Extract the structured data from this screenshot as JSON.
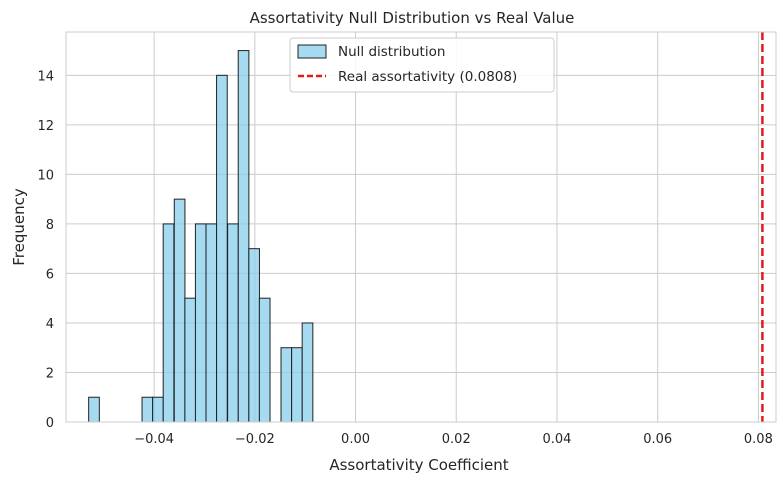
{
  "chart_data": {
    "type": "bar",
    "title": "Assortativity Null Distribution vs Real Value",
    "xlabel": "Assortativity Coefficient",
    "ylabel": "Frequency",
    "xlim": [
      -0.0575,
      0.0835
    ],
    "ylim": [
      0,
      15.75
    ],
    "xticks": [
      -0.04,
      -0.02,
      0.0,
      0.02,
      0.04,
      0.06,
      0.08
    ],
    "xtick_labels": [
      "−0.04",
      "−0.02",
      "0.00",
      "0.02",
      "0.04",
      "0.06",
      "0.08"
    ],
    "yticks": [
      0,
      2,
      4,
      6,
      8,
      10,
      12,
      14
    ],
    "yticks_labels": [
      "0",
      "2",
      "4",
      "6",
      "8",
      "10",
      "12",
      "14"
    ],
    "grid": true,
    "legend_position": "top-center",
    "bar_color": "#87ceeb",
    "bar_edge_color": "#222222",
    "line_color": "#e31a1c",
    "series": [
      {
        "name": "Null distribution",
        "kind": "histogram",
        "bin_width": 0.00212,
        "bins": [
          {
            "x0": -0.053,
            "value": 1
          },
          {
            "x0": -0.0509,
            "value": 0
          },
          {
            "x0": -0.0488,
            "value": 0
          },
          {
            "x0": -0.0466,
            "value": 0
          },
          {
            "x0": -0.0445,
            "value": 0
          },
          {
            "x0": -0.0424,
            "value": 1
          },
          {
            "x0": -0.0403,
            "value": 1
          },
          {
            "x0": -0.0382,
            "value": 8
          },
          {
            "x0": -0.036,
            "value": 9
          },
          {
            "x0": -0.0339,
            "value": 5
          },
          {
            "x0": -0.0318,
            "value": 8
          },
          {
            "x0": -0.0297,
            "value": 8
          },
          {
            "x0": -0.0276,
            "value": 14
          },
          {
            "x0": -0.0254,
            "value": 8
          },
          {
            "x0": -0.0233,
            "value": 15
          },
          {
            "x0": -0.0212,
            "value": 7
          },
          {
            "x0": -0.0191,
            "value": 5
          },
          {
            "x0": -0.017,
            "value": 0
          },
          {
            "x0": -0.0148,
            "value": 3
          },
          {
            "x0": -0.0127,
            "value": 3
          },
          {
            "x0": -0.0106,
            "value": 4
          }
        ]
      },
      {
        "name": "Real assortativity (0.0808)",
        "kind": "vline",
        "x": 0.0808
      }
    ]
  }
}
